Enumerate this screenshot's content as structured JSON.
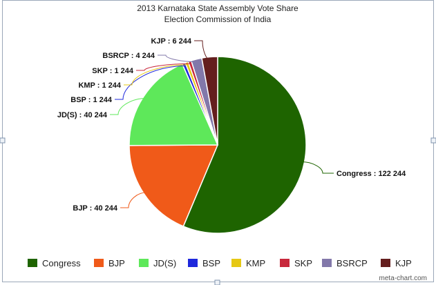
{
  "chart_data": {
    "type": "pie",
    "title": "2013 Karnataka State Assembly Vote Share",
    "subtitle": "Election Commission of India",
    "slices": [
      {
        "label": "Congress",
        "value": 122244,
        "display": "Congress : 122 244",
        "color": "#1e6400"
      },
      {
        "label": "BJP",
        "value": 40244,
        "display": "BJP : 40 244",
        "color": "#f05a19"
      },
      {
        "label": "JD(S)",
        "value": 40244,
        "display": "JD(S) : 40 244",
        "color": "#5ee85a"
      },
      {
        "label": "BSP",
        "value": 1244,
        "display": "BSP : 1 244",
        "color": "#1e28dc"
      },
      {
        "label": "KMP",
        "value": 1244,
        "display": "KMP : 1 244",
        "color": "#e6c814"
      },
      {
        "label": "SKP",
        "value": 1244,
        "display": "SKP : 1 244",
        "color": "#c8283c"
      },
      {
        "label": "BSRCP",
        "value": 4244,
        "display": "BSRCP : 4 244",
        "color": "#8278aa"
      },
      {
        "label": "KJP",
        "value": 6244,
        "display": "KJP : 6 244",
        "color": "#641e1e"
      }
    ],
    "legend_position": "bottom"
  },
  "credit": "meta-chart.com"
}
